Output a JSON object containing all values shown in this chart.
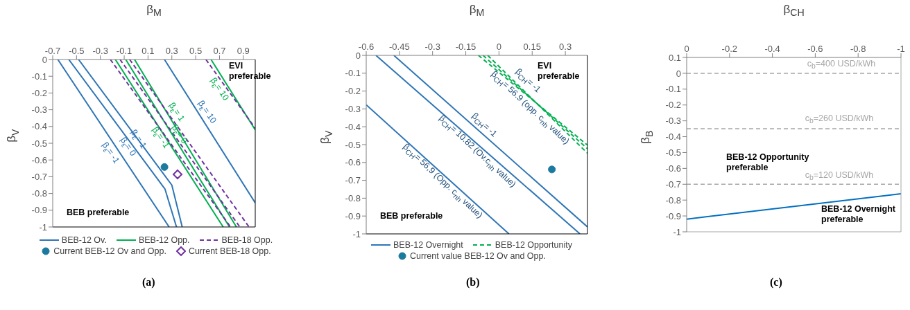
{
  "chart_data": [
    {
      "type": "line",
      "xlabel": "β$_{M}$",
      "ylabel": "β$_{V}$",
      "xlim": [
        -0.7,
        1.0
      ],
      "xticks": [
        -0.7,
        -0.5,
        -0.3,
        -0.1,
        0.1,
        0.3,
        0.5,
        0.7,
        0.9
      ],
      "ylim": [
        -1,
        0
      ],
      "yticks": [
        0,
        -0.1,
        -0.2,
        -0.3,
        -0.4,
        -0.5,
        -0.6,
        -0.7,
        -0.8,
        -0.9,
        -1
      ],
      "legend": "bottom",
      "marker": "none",
      "line_style": "solid",
      "series": [
        {
          "name": "BEB-12 Ov.",
          "color": "#2e75b6",
          "x": [
            -0.657,
            0.277
          ],
          "values": [
            0,
            -1
          ]
        },
        {
          "color": "#2e75b6",
          "x": [
            -0.565,
            0.242,
            0.339
          ],
          "values": [
            0,
            -0.773,
            -1
          ]
        },
        {
          "color": "#2e75b6",
          "x": [
            -0.483,
            0.3,
            0.387
          ],
          "values": [
            0,
            -0.75,
            -1
          ]
        },
        {
          "color": "#2e75b6",
          "x": [
            0.238,
            1.0
          ],
          "values": [
            0,
            -0.856
          ]
        },
        {
          "name": "BEB-12 Opp.",
          "color": "#00b050",
          "x": [
            -0.174,
            0.731
          ],
          "values": [
            0,
            -1
          ]
        },
        {
          "color": "#00b050",
          "x": [
            -0.087,
            0.784
          ],
          "values": [
            0,
            -1
          ]
        },
        {
          "color": "#00b050",
          "x": [
            -0.013,
            0.842
          ],
          "values": [
            0,
            -1
          ]
        },
        {
          "color": "#00b050",
          "x": [
            0.629,
            1.0
          ],
          "values": [
            0,
            -0.42
          ]
        },
        {
          "name": "BEB-18 Opp.",
          "color": "#7030a0",
          "line_style": "dashed",
          "x": [
            -0.216,
            0.793
          ],
          "values": [
            0,
            -1
          ]
        },
        {
          "color": "#7030a0",
          "line_style": "dashed",
          "x": [
            -0.135,
            0.871
          ],
          "values": [
            0,
            -1
          ]
        },
        {
          "color": "#7030a0",
          "line_style": "dashed",
          "x": [
            -0.054,
            0.948
          ],
          "values": [
            0,
            -1
          ]
        },
        {
          "color": "#7030a0",
          "line_style": "dashed",
          "x": [
            0.586,
            1.0
          ],
          "values": [
            0,
            -0.41
          ]
        },
        {
          "name": "Current BEB-12 Ov and Opp.",
          "type": "scatter",
          "marker": "circle",
          "color": "#1b7a9e",
          "x": [
            0.238
          ],
          "values": [
            -0.642
          ]
        },
        {
          "name": "Current BEB-18 Opp.",
          "type": "scatter",
          "marker": "diamond",
          "color": "#7030a0",
          "x": [
            0.348
          ],
          "values": [
            -0.686
          ]
        }
      ],
      "annotations": [
        "β$_{ε}$= -1",
        "β$_{ε}$= 0",
        "β$_{ε}$= 1",
        "β$_{ε}$= 10",
        "β$_{ε}$= -1",
        "β$_{ε}$= 0",
        "β$_{ε}$= 1",
        "β$_{ε}$= 10",
        "EVI preferable",
        "BEB preferable",
        "(a)"
      ]
    },
    {
      "type": "line",
      "xlabel": "β$_{M}$",
      "ylabel": "β$_{V}$",
      "xlim": [
        -0.6,
        0.4
      ],
      "xticks": [
        -0.6,
        -0.45,
        -0.3,
        -0.15,
        0,
        0.15,
        0.3
      ],
      "ylim": [
        -1,
        0
      ],
      "yticks": [
        0,
        -0.1,
        -0.2,
        -0.3,
        -0.4,
        -0.5,
        -0.6,
        -0.7,
        -0.8,
        -0.9,
        -1
      ],
      "legend": "bottom",
      "marker": "none",
      "line_style": "solid",
      "series": [
        {
          "name": "BEB-12 Overnight",
          "color": "#2e75b6",
          "x": [
            -0.6,
            0.045
          ],
          "values": [
            -0.277,
            -1
          ]
        },
        {
          "color": "#2e75b6",
          "x": [
            -0.556,
            0.366
          ],
          "values": [
            0,
            -1
          ]
        },
        {
          "color": "#2e75b6",
          "x": [
            -0.475,
            -0.416,
            0.4
          ],
          "values": [
            0,
            -0.065,
            -0.961
          ]
        },
        {
          "name": "BEB-12 Opportunity",
          "color": "#00b050",
          "line_style": "dashed",
          "x": [
            -0.093,
            0.4
          ],
          "values": [
            0,
            -0.503
          ]
        },
        {
          "color": "#00b050",
          "line_style": "dashed",
          "x": [
            -0.072,
            0.4
          ],
          "values": [
            0,
            -0.523
          ]
        },
        {
          "color": "#00b050",
          "line_style": "dashed",
          "x": [
            -0.051,
            0.4
          ],
          "values": [
            0,
            -0.548
          ]
        },
        {
          "name": "Current value BEB-12 Ov and Opp.",
          "type": "scatter",
          "marker": "circle",
          "color": "#1b7a9e",
          "x": [
            0.239
          ],
          "values": [
            -0.639
          ]
        }
      ],
      "annotations": [
        "β$_{CH}$= 56,9 (Opp. c$_{nh}$ value)",
        "β$_{CH}$= 10.82 (Ov.c$_{nh}$ value)",
        "β$_{CH}$= -1",
        "β$_{CH}$= 56.9 (opp. c$_{nh}$ value)",
        "β$_{CH}$= -1",
        "EVI preferable",
        "BEB preferable",
        "(b)"
      ]
    },
    {
      "type": "line",
      "xlabel": "β$_{CH}$",
      "ylabel": "β$_{B}$",
      "xlim": [
        0,
        -1
      ],
      "xticks": [
        0,
        -0.2,
        -0.4,
        -0.6,
        -0.8,
        -1
      ],
      "ylim": [
        -1,
        0.1
      ],
      "yticks": [
        0.1,
        0,
        -0.1,
        -0.2,
        -0.3,
        -0.4,
        -0.5,
        -0.6,
        -0.7,
        -0.8,
        -0.9,
        -1
      ],
      "marker": "none",
      "line_style": "solid",
      "series": [
        {
          "color": "#0070c0",
          "x": [
            0,
            -1
          ],
          "values": [
            -0.92,
            -0.76
          ]
        }
      ],
      "ref_lines": [
        {
          "axis": "y",
          "value": 0,
          "color": "#a6a6a6",
          "line_style": "dashed"
        },
        {
          "axis": "y",
          "value": -0.35,
          "color": "#a6a6a6",
          "line_style": "dashed"
        },
        {
          "axis": "y",
          "value": -0.7,
          "color": "#a6a6a6",
          "line_style": "dashed"
        }
      ],
      "annotations": [
        "c$_{b}$=400 USD/kWh",
        "c$_{b}$=260 USD/kWh",
        "c$_{b}$=120 USD/kWh",
        "BEB-12 Opportunity preferable",
        "BEB-12 Overnight preferable",
        "(c)"
      ]
    }
  ]
}
